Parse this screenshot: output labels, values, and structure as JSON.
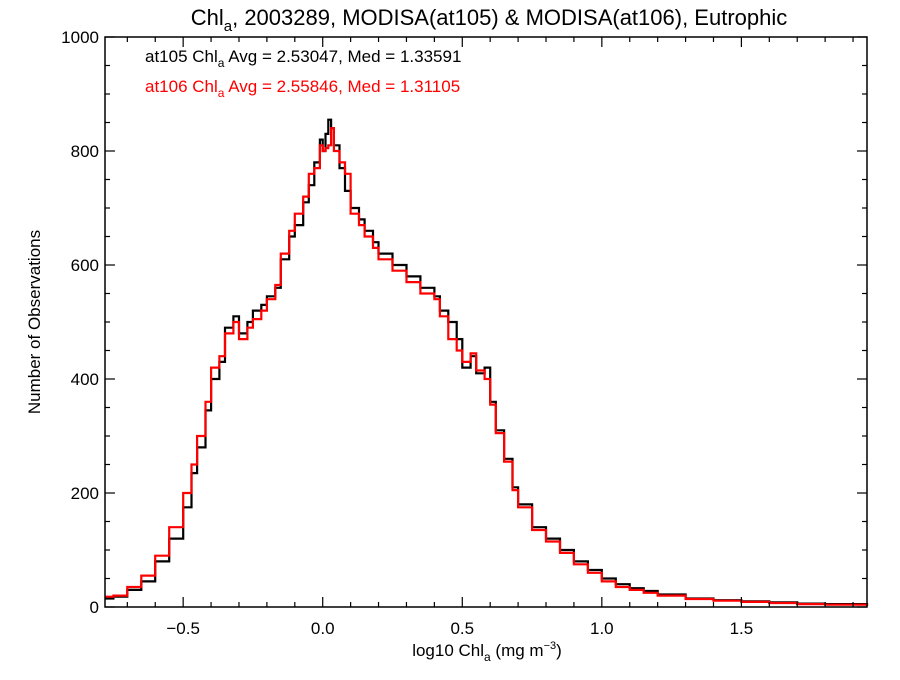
{
  "chart_data": {
    "type": "line",
    "title": {
      "prefix": "Chl",
      "sub": "a",
      "suffix": ", 2003289, MODISA(at105) & MODISA(at106), Eutrophic"
    },
    "xlabel": {
      "prefix": "log10 Chl",
      "sub": "a",
      "mid": " (mg m",
      "sup": "−3",
      "suffix": ")"
    },
    "ylabel": "Number of Observations",
    "xlim": [
      -0.78,
      1.95
    ],
    "ylim": [
      0,
      1000
    ],
    "x_ticks": [
      -0.5,
      0.0,
      0.5,
      1.0,
      1.5
    ],
    "x_tick_labels": [
      "−0.5",
      "0.0",
      "0.5",
      "1.0",
      "1.5"
    ],
    "y_ticks": [
      0,
      200,
      400,
      600,
      800,
      1000
    ],
    "y_tick_labels": [
      "0",
      "200",
      "400",
      "600",
      "800",
      "1000"
    ],
    "annotations": [
      {
        "prefix": "at105 Chl",
        "sub": "a",
        "suffix": " Avg = 2.53047, Med = 1.33591",
        "color": "#000000"
      },
      {
        "prefix": "at106 Chl",
        "sub": "a",
        "suffix": " Avg = 2.55846, Med = 1.31105",
        "color": "#ff0000"
      }
    ],
    "series": [
      {
        "color": "#000000",
        "x": [
          -0.78,
          -0.75,
          -0.7,
          -0.65,
          -0.6,
          -0.55,
          -0.5,
          -0.47,
          -0.45,
          -0.42,
          -0.4,
          -0.37,
          -0.35,
          -0.32,
          -0.3,
          -0.27,
          -0.25,
          -0.22,
          -0.2,
          -0.17,
          -0.15,
          -0.12,
          -0.1,
          -0.07,
          -0.05,
          -0.03,
          -0.01,
          0.0,
          0.01,
          0.02,
          0.03,
          0.04,
          0.06,
          0.08,
          0.1,
          0.13,
          0.15,
          0.18,
          0.2,
          0.25,
          0.3,
          0.35,
          0.4,
          0.42,
          0.45,
          0.48,
          0.5,
          0.53,
          0.55,
          0.58,
          0.6,
          0.62,
          0.65,
          0.68,
          0.7,
          0.75,
          0.8,
          0.85,
          0.9,
          0.95,
          1.0,
          1.05,
          1.1,
          1.15,
          1.2,
          1.3,
          1.4,
          1.5,
          1.6,
          1.7,
          1.8,
          1.95
        ],
        "y": [
          15,
          18,
          30,
          45,
          80,
          120,
          175,
          235,
          280,
          345,
          400,
          430,
          490,
          510,
          480,
          500,
          520,
          530,
          545,
          560,
          610,
          650,
          670,
          710,
          740,
          780,
          820,
          800,
          830,
          855,
          840,
          810,
          770,
          730,
          700,
          680,
          660,
          640,
          620,
          600,
          580,
          560,
          545,
          520,
          500,
          470,
          420,
          440,
          410,
          420,
          360,
          310,
          260,
          210,
          180,
          140,
          120,
          100,
          80,
          65,
          50,
          40,
          33,
          28,
          22,
          15,
          12,
          10,
          8,
          6,
          5,
          2
        ]
      },
      {
        "color": "#ff0000",
        "x": [
          -0.78,
          -0.75,
          -0.7,
          -0.65,
          -0.6,
          -0.55,
          -0.5,
          -0.47,
          -0.45,
          -0.42,
          -0.4,
          -0.37,
          -0.35,
          -0.32,
          -0.3,
          -0.27,
          -0.25,
          -0.22,
          -0.2,
          -0.17,
          -0.15,
          -0.12,
          -0.1,
          -0.07,
          -0.05,
          -0.03,
          -0.01,
          0.0,
          0.01,
          0.02,
          0.03,
          0.04,
          0.06,
          0.08,
          0.1,
          0.13,
          0.15,
          0.18,
          0.2,
          0.25,
          0.3,
          0.35,
          0.4,
          0.42,
          0.45,
          0.48,
          0.5,
          0.53,
          0.55,
          0.58,
          0.6,
          0.62,
          0.65,
          0.68,
          0.7,
          0.75,
          0.8,
          0.85,
          0.9,
          0.95,
          1.0,
          1.05,
          1.1,
          1.15,
          1.2,
          1.3,
          1.4,
          1.5,
          1.6,
          1.7,
          1.8,
          1.95
        ],
        "y": [
          18,
          20,
          35,
          55,
          90,
          140,
          200,
          250,
          300,
          360,
          420,
          440,
          480,
          500,
          470,
          490,
          505,
          520,
          540,
          565,
          620,
          660,
          690,
          720,
          760,
          770,
          810,
          800,
          805,
          810,
          840,
          800,
          780,
          760,
          690,
          670,
          650,
          630,
          610,
          590,
          570,
          550,
          540,
          510,
          470,
          450,
          430,
          445,
          415,
          400,
          355,
          305,
          255,
          205,
          175,
          135,
          115,
          95,
          75,
          60,
          45,
          35,
          30,
          25,
          20,
          14,
          11,
          9,
          7,
          5,
          4,
          2
        ]
      }
    ]
  }
}
